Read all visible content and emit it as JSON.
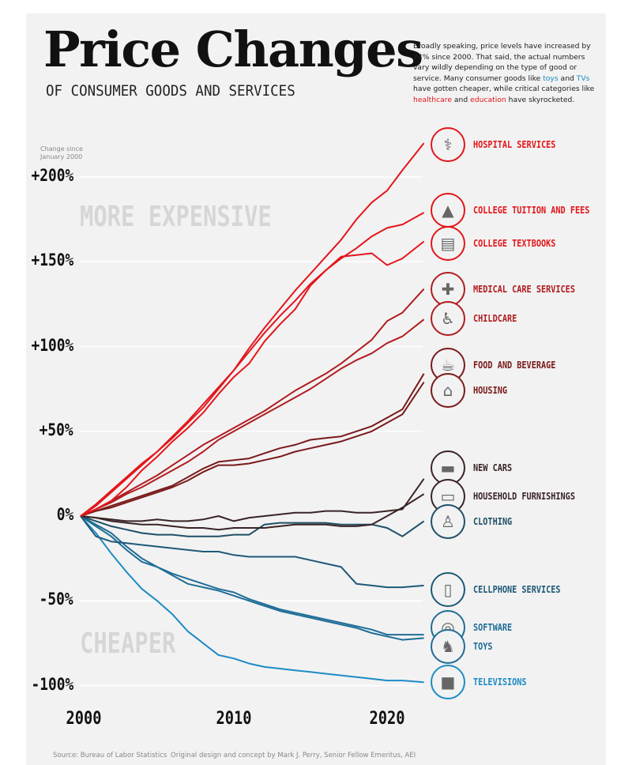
{
  "header": {
    "title": "Price Changes",
    "subtitle": "OF CONSUMER GOODS AND SERVICES",
    "intro_parts": [
      {
        "text": "Broadly speaking, price levels have increased by 74% since 2000. That said, the actual numbers vary wildly depending on the type of good or service. Many consumer goods like ",
        "style": "plain"
      },
      {
        "text": "toys",
        "style": "blue"
      },
      {
        "text": " and ",
        "style": "plain"
      },
      {
        "text": "TVs",
        "style": "blue"
      },
      {
        "text": " have gotten cheaper, while critical categories like ",
        "style": "plain"
      },
      {
        "text": "healthcare",
        "style": "red"
      },
      {
        "text": " and ",
        "style": "plain"
      },
      {
        "text": "education",
        "style": "red"
      },
      {
        "text": " have skyrocketed.",
        "style": "plain"
      }
    ]
  },
  "annotations": {
    "more_expensive": "MORE EXPENSIVE",
    "cheaper": "CHEAPER"
  },
  "footer": {
    "source": "Source: Bureau of Labor Statistics",
    "credit": "Original design and concept by Mark J. Perry, Senior Fellow Emeritus, AEI"
  },
  "chart_data": {
    "type": "line",
    "title": "Price Changes of Consumer Goods and Services",
    "ylabel": "Change since January 2000",
    "xlabel": "",
    "xlim": [
      2000,
      2022.4
    ],
    "ylim": [
      -110,
      225
    ],
    "y_ticks": [
      200,
      150,
      100,
      50,
      0,
      -50,
      -100
    ],
    "y_tick_labels": [
      "+200%",
      "+150%",
      "+100%",
      "+50%",
      "0%",
      "-50%",
      "-100%"
    ],
    "x_ticks": [
      2000,
      2010,
      2020
    ],
    "x_tick_labels": [
      "2000",
      "2010",
      "2020"
    ],
    "grid": true,
    "legend": "right (direct labels at line ends)",
    "x": [
      2000,
      2001,
      2002,
      2003,
      2004,
      2005,
      2006,
      2007,
      2008,
      2009,
      2010,
      2011,
      2012,
      2013,
      2014,
      2015,
      2016,
      2017,
      2018,
      2019,
      2020,
      2021,
      2022
    ],
    "series": [
      {
        "name": "HOSPITAL SERVICES",
        "icon": "hospital-icon",
        "color": "#e3161b",
        "values": [
          0,
          7,
          15,
          23,
          31,
          38,
          46,
          55,
          64,
          75,
          86,
          99,
          111,
          122,
          133,
          143,
          153,
          163,
          175,
          185,
          192,
          204,
          220
        ]
      },
      {
        "name": "COLLEGE TUITION AND FEES",
        "icon": "graduation-cap-icon",
        "color": "#e3161b",
        "values": [
          0,
          6,
          14,
          22,
          30,
          38,
          47,
          56,
          66,
          76,
          86,
          97,
          108,
          118,
          127,
          137,
          145,
          152,
          158,
          165,
          170,
          172,
          179
        ]
      },
      {
        "name": "COLLEGE TEXTBOOKS",
        "icon": "book-icon",
        "color": "#e3161b",
        "values": [
          0,
          4,
          9,
          17,
          27,
          35,
          44,
          52,
          61,
          72,
          82,
          90,
          103,
          113,
          122,
          136,
          145,
          153,
          154,
          155,
          148,
          152,
          162
        ]
      },
      {
        "name": "MEDICAL CARE SERVICES",
        "icon": "medical-kit-icon",
        "color": "#b01c20",
        "values": [
          0,
          4,
          9,
          14,
          19,
          24,
          30,
          36,
          42,
          47,
          52,
          57,
          62,
          68,
          74,
          79,
          84,
          90,
          97,
          104,
          115,
          120,
          134
        ]
      },
      {
        "name": "CHILDCARE",
        "icon": "stroller-icon",
        "color": "#b01c20",
        "values": [
          0,
          4,
          8,
          13,
          17,
          22,
          27,
          32,
          38,
          45,
          50,
          55,
          60,
          65,
          70,
          75,
          81,
          87,
          92,
          96,
          102,
          106,
          116
        ]
      },
      {
        "name": "FOOD AND BEVERAGE",
        "icon": "food-icon",
        "color": "#7a1a1a",
        "values": [
          0,
          3,
          6,
          9,
          12,
          15,
          18,
          23,
          28,
          32,
          33,
          34,
          37,
          40,
          42,
          45,
          46,
          47,
          50,
          53,
          58,
          63,
          84
        ]
      },
      {
        "name": "HOUSING",
        "icon": "house-icon",
        "color": "#7a1a1a",
        "values": [
          0,
          3,
          5,
          8,
          11,
          14,
          17,
          21,
          26,
          30,
          30,
          31,
          33,
          35,
          38,
          40,
          42,
          44,
          47,
          50,
          55,
          60,
          79
        ]
      },
      {
        "name": "NEW CARS",
        "icon": "car-icon",
        "color": "#3a2426",
        "values": [
          0,
          -1,
          -2,
          -3,
          -3,
          -2,
          -3,
          -3,
          -2,
          0,
          -3,
          -1,
          0,
          1,
          2,
          2,
          3,
          3,
          2,
          2,
          3,
          4,
          22
        ]
      },
      {
        "name": "HOUSEHOLD FURNISHINGS",
        "icon": "sofa-icon",
        "color": "#3a2426",
        "values": [
          0,
          -1,
          -3,
          -4,
          -5,
          -5,
          -6,
          -7,
          -7,
          -8,
          -7,
          -7,
          -7,
          -6,
          -5,
          -5,
          -5,
          -6,
          -6,
          -5,
          0,
          5,
          13
        ]
      },
      {
        "name": "CLOTHING",
        "icon": "shirt-icon",
        "color": "#1f4f66",
        "values": [
          0,
          -3,
          -6,
          -8,
          -10,
          -11,
          -11,
          -12,
          -12,
          -12,
          -11,
          -11,
          -5,
          -4,
          -4,
          -4,
          -4,
          -5,
          -5,
          -5,
          -7,
          -12,
          -3
        ]
      },
      {
        "name": "CELLPHONE SERVICES",
        "icon": "cellphone-icon",
        "color": "#1f5878",
        "values": [
          0,
          -12,
          -15,
          -16,
          -17,
          -18,
          -19,
          -20,
          -21,
          -21,
          -23,
          -24,
          -24,
          -24,
          -24,
          -26,
          -28,
          -30,
          -40,
          -41,
          -42,
          -42,
          -41
        ]
      },
      {
        "name": "SOFTWARE",
        "icon": "software-disc-icon",
        "color": "#1f6d96",
        "values": [
          0,
          -6,
          -12,
          -20,
          -27,
          -30,
          -34,
          -37,
          -40,
          -43,
          -45,
          -49,
          -52,
          -55,
          -57,
          -59,
          -61,
          -63,
          -65,
          -67,
          -70,
          -70,
          -70
        ]
      },
      {
        "name": "TOYS",
        "icon": "toy-icon",
        "color": "#1f6d96",
        "values": [
          0,
          -5,
          -10,
          -18,
          -25,
          -30,
          -35,
          -40,
          -42,
          -44,
          -47,
          -50,
          -53,
          -56,
          -58,
          -60,
          -62,
          -64,
          -66,
          -69,
          -71,
          -73,
          -72
        ]
      },
      {
        "name": "TELEVISIONS",
        "icon": "television-icon",
        "color": "#1d8bc5",
        "values": [
          0,
          -10,
          -22,
          -33,
          -43,
          -50,
          -58,
          -68,
          -75,
          -82,
          -84,
          -87,
          -89,
          -90,
          -91,
          -92,
          -93,
          -94,
          -95,
          -96,
          -97,
          -97,
          -98
        ]
      }
    ]
  }
}
